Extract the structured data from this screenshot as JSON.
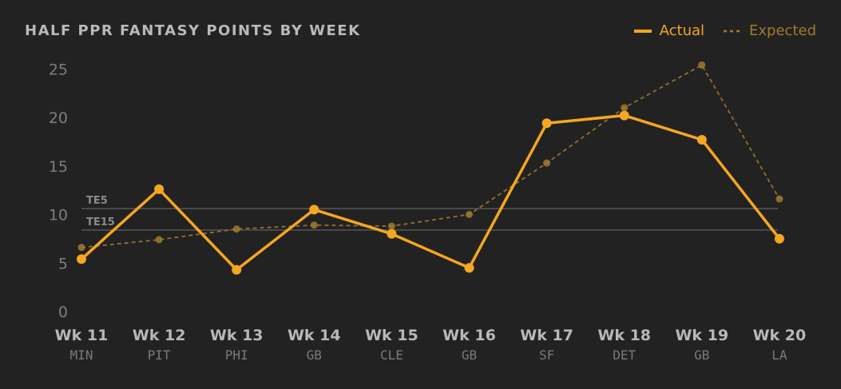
{
  "chart_data": {
    "type": "line",
    "title": "HALF PPR FANTASY POINTS BY WEEK",
    "categories": [
      "Wk 11",
      "Wk 12",
      "Wk 13",
      "Wk 14",
      "Wk 15",
      "Wk 16",
      "Wk 17",
      "Wk 18",
      "Wk 19",
      "Wk 20"
    ],
    "opponents": [
      "MIN",
      "PIT",
      "PHI",
      "GB",
      "CLE",
      "GB",
      "SF",
      "DET",
      "GB",
      "LA"
    ],
    "series": [
      {
        "name": "Actual",
        "style": "solid",
        "color": "#f5a623",
        "values": [
          5.4,
          12.6,
          4.3,
          10.5,
          8.0,
          4.5,
          19.4,
          20.2,
          17.7,
          7.5
        ]
      },
      {
        "name": "Expected",
        "style": "dashed",
        "color": "#a07a2e",
        "values": [
          6.6,
          7.4,
          8.5,
          8.9,
          8.8,
          10.0,
          15.3,
          21.0,
          25.4,
          11.6
        ]
      }
    ],
    "yticks": [
      0,
      5,
      10,
      15,
      20,
      25
    ],
    "ylim": [
      0,
      26
    ],
    "reference_lines": [
      {
        "label": "TE5",
        "value": 10.6
      },
      {
        "label": "TE15",
        "value": 8.4
      }
    ],
    "grid": false,
    "legend_position": "top-right",
    "xlabel": "",
    "ylabel": ""
  }
}
